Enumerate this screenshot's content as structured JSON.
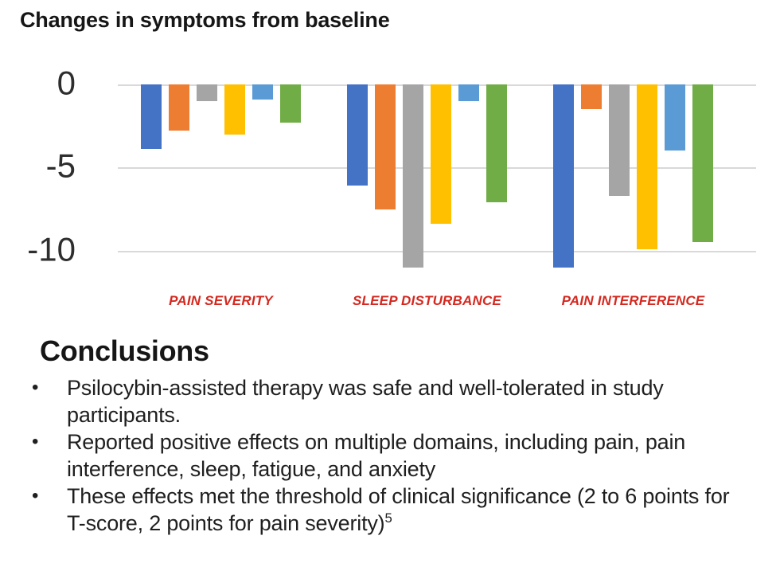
{
  "chart_data": {
    "type": "bar",
    "title": "Changes in symptoms from baseline",
    "categories": [
      "PAIN SEVERITY",
      "SLEEP DISTURBANCE",
      "PAIN INTERFERENCE"
    ],
    "series": [
      {
        "name": "series-1-blue",
        "color": "#4472C4",
        "values": [
          -3.9,
          -6.1,
          -11.0
        ]
      },
      {
        "name": "series-2-orange",
        "color": "#ED7D31",
        "values": [
          -2.8,
          -7.5,
          -1.5
        ]
      },
      {
        "name": "series-3-gray",
        "color": "#A5A5A5",
        "values": [
          -1.0,
          -11.0,
          -6.7
        ]
      },
      {
        "name": "series-4-yellow",
        "color": "#FFC000",
        "values": [
          -3.0,
          -8.4,
          -9.9
        ]
      },
      {
        "name": "series-5-light-blue",
        "color": "#5B9BD5",
        "values": [
          -0.9,
          -1.0,
          -4.0
        ]
      },
      {
        "name": "series-6-green",
        "color": "#70AD47",
        "values": [
          -2.3,
          -7.1,
          -9.5
        ]
      }
    ],
    "yticks": [
      0,
      -5,
      -10
    ],
    "ylim": [
      -11.5,
      0
    ],
    "grid": true,
    "legend_position": "none",
    "category_label_color": "#D5281F",
    "gridline_color": "#d9d9d9"
  },
  "conclusions": {
    "title": "Conclusions",
    "bullets": [
      {
        "text": "Psilocybin-assisted therapy was safe and well-tolerated in study participants.",
        "superscript": ""
      },
      {
        "text": "Reported positive effects on multiple domains, including pain, pain interference, sleep, fatigue, and anxiety",
        "superscript": ""
      },
      {
        "text": "These effects met the threshold of clinical significance (2 to 6 points for T-score, 2 points for pain severity)",
        "superscript": "5"
      }
    ]
  }
}
